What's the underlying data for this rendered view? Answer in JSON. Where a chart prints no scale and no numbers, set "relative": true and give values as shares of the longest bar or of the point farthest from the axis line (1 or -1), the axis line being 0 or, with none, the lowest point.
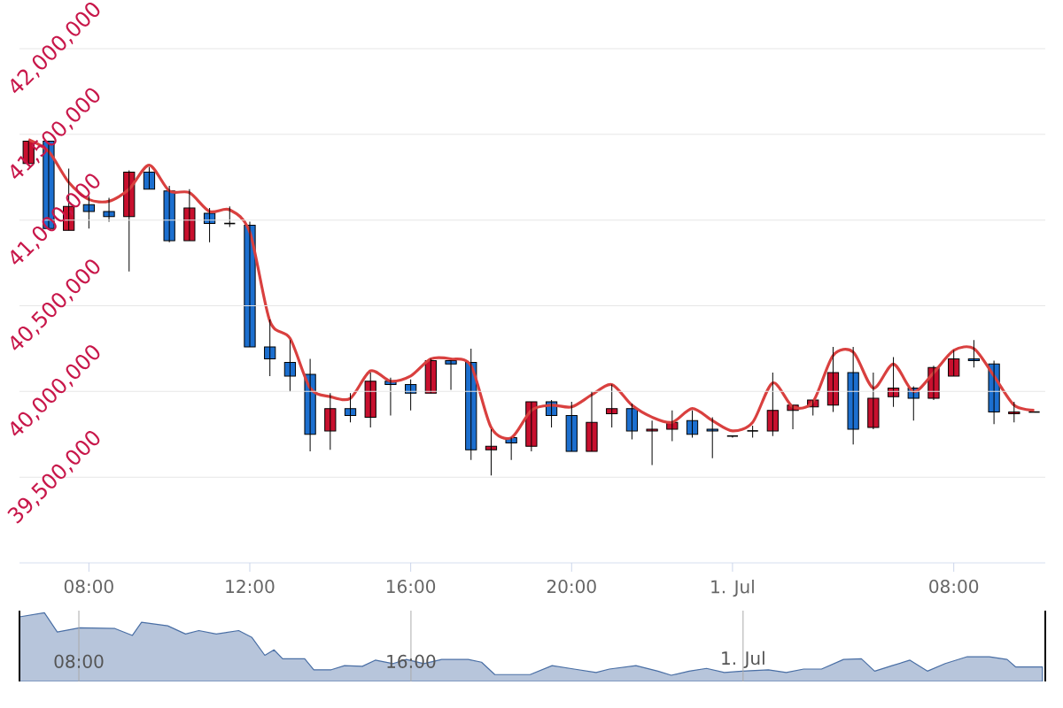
{
  "chart_data": [
    {
      "type": "candlestick",
      "categories": [
        null,
        null,
        null,
        "08:00",
        null,
        null,
        null,
        null,
        null,
        null,
        null,
        "12:00",
        null,
        null,
        null,
        null,
        null,
        null,
        null,
        "16:00",
        null,
        null,
        null,
        null,
        null,
        null,
        null,
        "20:00",
        null,
        null,
        null,
        null,
        null,
        null,
        null,
        "1. Jul",
        null,
        null,
        null,
        null,
        null,
        null,
        null,
        null,
        null,
        null,
        "08:00",
        null,
        null,
        null,
        null
      ],
      "ohlc": [
        [
          41330000,
          41460000,
          41330000,
          41460000
        ],
        [
          41460000,
          41460000,
          40950000,
          40950000
        ],
        [
          40940000,
          41300000,
          40940000,
          41080000
        ],
        [
          41090000,
          41140000,
          40950000,
          41050000
        ],
        [
          41050000,
          41130000,
          40990000,
          41020000
        ],
        [
          41020000,
          41290000,
          40700000,
          41280000
        ],
        [
          41280000,
          41310000,
          41180000,
          41180000
        ],
        [
          41170000,
          41200000,
          40870000,
          40880000
        ],
        [
          40880000,
          41180000,
          40880000,
          41070000
        ],
        [
          41040000,
          41070000,
          40870000,
          40980000
        ],
        [
          40980000,
          41080000,
          40960000,
          40980000
        ],
        [
          40970000,
          40990000,
          40260000,
          40260000
        ],
        [
          40260000,
          40420000,
          40090000,
          40190000
        ],
        [
          40170000,
          40300000,
          40000000,
          40090000
        ],
        [
          40100000,
          40190000,
          39650000,
          39750000
        ],
        [
          39770000,
          39990000,
          39660000,
          39900000
        ],
        [
          39900000,
          39990000,
          39820000,
          39860000
        ],
        [
          39850000,
          40110000,
          39790000,
          40060000
        ],
        [
          40060000,
          40080000,
          39860000,
          40040000
        ],
        [
          40040000,
          40070000,
          39890000,
          39990000
        ],
        [
          39990000,
          40190000,
          39990000,
          40180000
        ],
        [
          40180000,
          40180000,
          40010000,
          40160000
        ],
        [
          40170000,
          40250000,
          39600000,
          39660000
        ],
        [
          39660000,
          39780000,
          39510000,
          39680000
        ],
        [
          39730000,
          39730000,
          39600000,
          39700000
        ],
        [
          39680000,
          39940000,
          39650000,
          39940000
        ],
        [
          39940000,
          39950000,
          39790000,
          39860000
        ],
        [
          39860000,
          39940000,
          39650000,
          39650000
        ],
        [
          39650000,
          40000000,
          39650000,
          39820000
        ],
        [
          39870000,
          40040000,
          39790000,
          39900000
        ],
        [
          39900000,
          39930000,
          39720000,
          39770000
        ],
        [
          39770000,
          39830000,
          39570000,
          39780000
        ],
        [
          39780000,
          39890000,
          39710000,
          39820000
        ],
        [
          39830000,
          39890000,
          39730000,
          39750000
        ],
        [
          39780000,
          39850000,
          39610000,
          39770000
        ],
        [
          39740000,
          39740000,
          39730000,
          39740000
        ],
        [
          39770000,
          39800000,
          39730000,
          39770000
        ],
        [
          39770000,
          40110000,
          39740000,
          39890000
        ],
        [
          39890000,
          39920000,
          39780000,
          39920000
        ],
        [
          39910000,
          39950000,
          39860000,
          39950000
        ],
        [
          39920000,
          40260000,
          39880000,
          40110000
        ],
        [
          40110000,
          40260000,
          39690000,
          39780000
        ],
        [
          39790000,
          40110000,
          39780000,
          39960000
        ],
        [
          39970000,
          40200000,
          39910000,
          40020000
        ],
        [
          40020000,
          40030000,
          39830000,
          39960000
        ],
        [
          39960000,
          40150000,
          39950000,
          40140000
        ],
        [
          40090000,
          40240000,
          40090000,
          40190000
        ],
        [
          40190000,
          40300000,
          40140000,
          40180000
        ],
        [
          40160000,
          40180000,
          39810000,
          39880000
        ],
        [
          39870000,
          39940000,
          39820000,
          39880000
        ],
        [
          39880000,
          39880000,
          39880000,
          39880000
        ]
      ],
      "colors": [
        "#c8102e",
        "#1c6fcf",
        "#c8102e",
        "#1c6fcf",
        "#1c6fcf",
        "#c8102e",
        "#1c6fcf",
        "#1c6fcf",
        "#c8102e",
        "#1c6fcf",
        "#000000",
        "#1c6fcf",
        "#1c6fcf",
        "#1c6fcf",
        "#1c6fcf",
        "#c8102e",
        "#1c6fcf",
        "#c8102e",
        "#1c6fcf",
        "#1c6fcf",
        "#c8102e",
        "#1c6fcf",
        "#1c6fcf",
        "#c8102e",
        "#1c6fcf",
        "#c8102e",
        "#1c6fcf",
        "#1c6fcf",
        "#c8102e",
        "#c8102e",
        "#1c6fcf",
        "#c8102e",
        "#c8102e",
        "#1c6fcf",
        "#1c6fcf",
        "#000000",
        "#000000",
        "#c8102e",
        "#c8102e",
        "#c8102e",
        "#c8102e",
        "#1c6fcf",
        "#c8102e",
        "#c8102e",
        "#1c6fcf",
        "#c8102e",
        "#c8102e",
        "#1c6fcf",
        "#1c6fcf",
        "#c8102e",
        "#000000"
      ],
      "series": [
        {
          "type": "line",
          "color": "#d9403f",
          "values": [
            41470000,
            41400000,
            41220000,
            41120000,
            41110000,
            41180000,
            41320000,
            41170000,
            41160000,
            41050000,
            41060000,
            40930000,
            40410000,
            40310000,
            40020000,
            39970000,
            39960000,
            40120000,
            40060000,
            40090000,
            40190000,
            40190000,
            40150000,
            39790000,
            39730000,
            39890000,
            39920000,
            39910000,
            39980000,
            40040000,
            39920000,
            39850000,
            39820000,
            39900000,
            39830000,
            39770000,
            39820000,
            40050000,
            39910000,
            39940000,
            40210000,
            40230000,
            40020000,
            40160000,
            40000000,
            40110000,
            40240000,
            40250000,
            40090000,
            39920000,
            39890000
          ]
        }
      ],
      "ylim": [
        39000000,
        42000000
      ],
      "yticks": [
        {
          "value": 39500000,
          "label": "39,500,000"
        },
        {
          "value": 40000000,
          "label": "40,000,000"
        },
        {
          "value": 40500000,
          "label": "40,500,000"
        },
        {
          "value": 41000000,
          "label": "41,000,000"
        },
        {
          "value": 41500000,
          "label": "41,500,000"
        },
        {
          "value": 42000000,
          "label": "42,000,000"
        }
      ],
      "grid": "y"
    },
    {
      "type": "area",
      "relative": true,
      "color": "#4a6fa5",
      "x": [
        6.57,
        7.17,
        7.48,
        8.02,
        8.87,
        9.29,
        9.51,
        10.14,
        10.57,
        10.89,
        11.31,
        11.85,
        12.17,
        12.48,
        12.7,
        12.91,
        13.44,
        13.66,
        14.08,
        14.4,
        14.83,
        15.14,
        15.57,
        15.89,
        16.31,
        16.74,
        17.38,
        17.7,
        18.02,
        18.87,
        19.4,
        19.93,
        20.46,
        20.78,
        21.42,
        21.95,
        22.27,
        22.7,
        23.12,
        23.55,
        23.97,
        24.61,
        25.04,
        25.46,
        25.89,
        26.42,
        26.85,
        27.17,
        27.59,
        28.02,
        28.44,
        28.87,
        29.4,
        29.93,
        30.36,
        30.57,
        31.21
      ],
      "values": [
        0.94,
        1,
        0.72,
        0.78,
        0.77,
        0.67,
        0.86,
        0.81,
        0.69,
        0.74,
        0.69,
        0.74,
        0.64,
        0.38,
        0.46,
        0.33,
        0.33,
        0.17,
        0.17,
        0.23,
        0.22,
        0.31,
        0.26,
        0.32,
        0.26,
        0.32,
        0.32,
        0.28,
        0.1,
        0.1,
        0.23,
        0.18,
        0.13,
        0.18,
        0.23,
        0.15,
        0.09,
        0.15,
        0.19,
        0.13,
        0.15,
        0.17,
        0.13,
        0.18,
        0.18,
        0.32,
        0.33,
        0.15,
        0.23,
        0.31,
        0.15,
        0.26,
        0.36,
        0.36,
        0.32,
        0.21,
        0.21
      ],
      "xlim": [
        6.57,
        31.28
      ],
      "xticks": [
        {
          "value": 8,
          "label": "08:00"
        },
        {
          "value": 16,
          "label": "16:00"
        },
        {
          "value": 24,
          "label": "1. Jul"
        }
      ],
      "grid": "x",
      "tick_labels": "x"
    }
  ]
}
